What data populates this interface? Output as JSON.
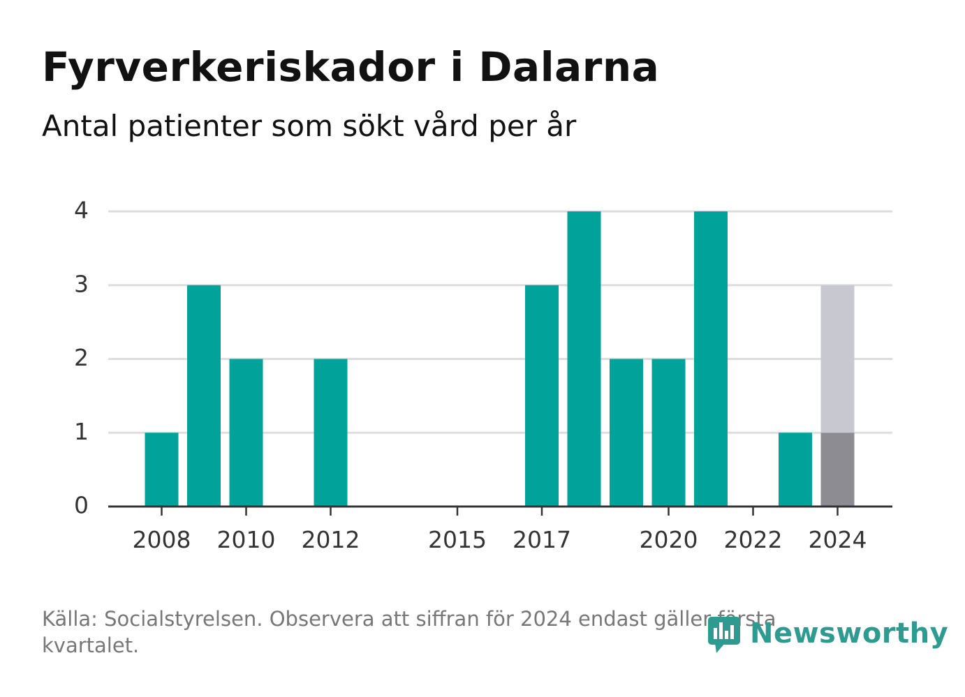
{
  "title": "Fyrverkeriskador i Dalarna",
  "subtitle": "Antal patienter som sökt vård per år",
  "footer": "Källa: Socialstyrelsen. Observera att siffran för 2024 endast gäller första kvartalet.",
  "brand": "Newsworthy",
  "colors": {
    "bar": "#00a29a",
    "bar_2024_total": "#c8c8d0",
    "bar_2024_partial": "#8c8c92",
    "grid": "#dddddd",
    "axis": "#333333",
    "brand": "#2f9a8f"
  },
  "chart_data": {
    "type": "bar",
    "x": [
      2008,
      2009,
      2010,
      2011,
      2012,
      2013,
      2014,
      2015,
      2016,
      2017,
      2018,
      2019,
      2020,
      2021,
      2022,
      2023,
      2024
    ],
    "values": [
      1,
      3,
      2,
      0,
      2,
      0,
      0,
      0,
      0,
      3,
      4,
      2,
      2,
      4,
      0,
      1,
      1
    ],
    "highlight": {
      "x": 2024,
      "partial_value": 1,
      "reference_value": 3
    },
    "x_tick_labels": [
      "2008",
      "2010",
      "2012",
      "2015",
      "2017",
      "2020",
      "2022",
      "2024"
    ],
    "y_ticks": [
      0,
      1,
      2,
      3,
      4
    ],
    "ylim": [
      0,
      4
    ],
    "grid": true
  }
}
